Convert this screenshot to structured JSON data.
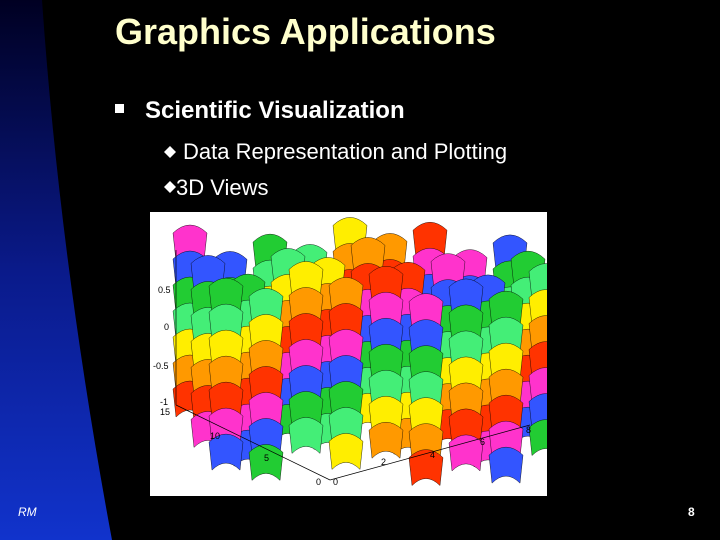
{
  "header": {
    "title": "Graphics Applications"
  },
  "bullets": [
    {
      "text": "Scientific Visualization",
      "sub_bullets": [
        "Data Representation and Plotting",
        "3D Views"
      ]
    }
  ],
  "figure": {
    "z_axis_labels": [
      "0.5",
      "0",
      "-0.5",
      "-1"
    ],
    "y_axis_labels": [
      "15",
      "10",
      "5",
      "0"
    ],
    "x_axis_labels": [
      "0",
      "2",
      "4",
      "6",
      "8"
    ]
  },
  "footer": {
    "author": "RM",
    "page": "8"
  }
}
